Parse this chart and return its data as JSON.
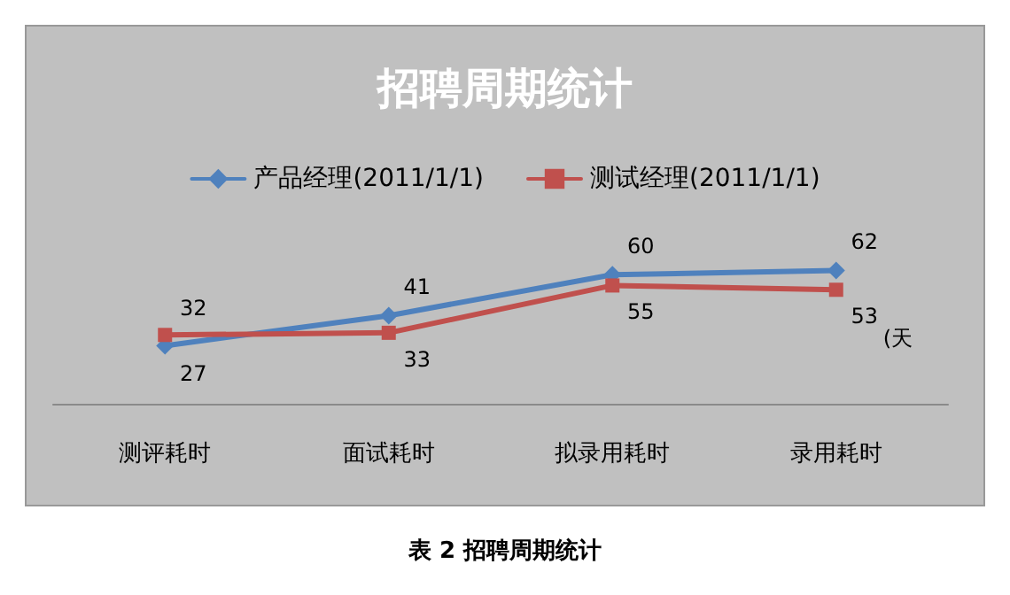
{
  "chart_data": {
    "type": "line",
    "title": "招聘周期统计",
    "categories": [
      "测评耗时",
      "面试耗时",
      "拟录用耗时",
      "录用耗时"
    ],
    "series": [
      {
        "name": "产品经理(2011/1/1)",
        "color": "#4f81bd",
        "marker": "diamond",
        "values": [
          27,
          41,
          60,
          62
        ]
      },
      {
        "name": "测试经理(2011/1/1)",
        "color": "#c0504d",
        "marker": "square",
        "values": [
          32,
          33,
          55,
          53
        ]
      }
    ],
    "data_labels": true,
    "legend": "top",
    "grid": false,
    "tick_labels": "x",
    "line_style": "solid",
    "annotations": [
      "(天",
      "表 2 招聘周期统计"
    ]
  }
}
